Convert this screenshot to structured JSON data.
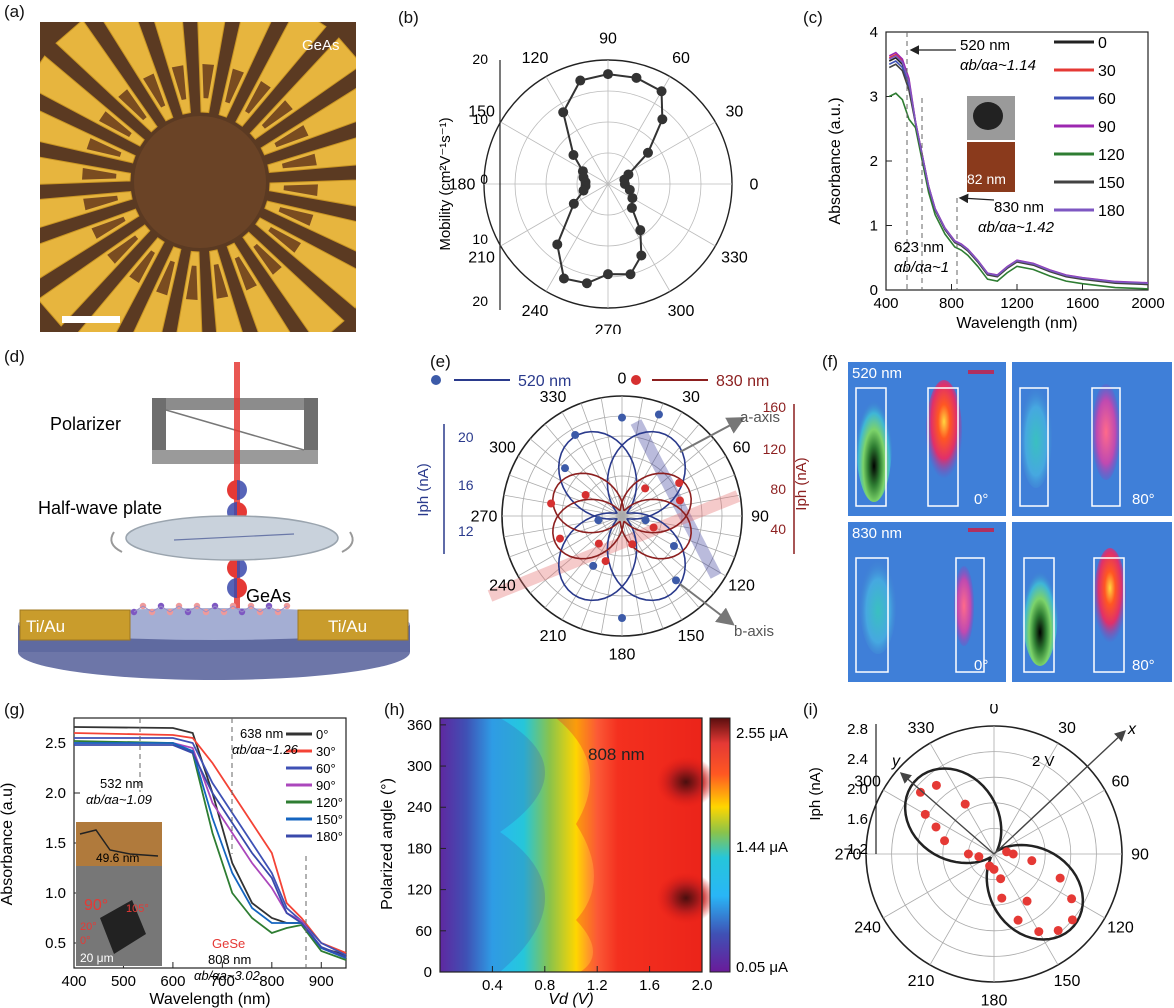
{
  "panel_labels": [
    "(a)",
    "(b)",
    "(c)",
    "(d)",
    "(e)",
    "(f)",
    "(g)",
    "(h)",
    "(i)"
  ],
  "a": {
    "material": "GeAs"
  },
  "b": {
    "ylabel": "Mobility (cm²V⁻¹s⁻¹)",
    "radial_ticks": [
      "0",
      "10",
      "20"
    ],
    "angle_labels": [
      "0",
      "30",
      "60",
      "90",
      "120",
      "150",
      "180",
      "210",
      "240",
      "270",
      "300",
      "330"
    ]
  },
  "c": {
    "xlabel": "Wavelength (nm)",
    "ylabel": "Absorbance (a.u.)",
    "xticks": [
      "400",
      "800",
      "1200",
      "1600",
      "2000"
    ],
    "yticks": [
      "0",
      "1",
      "2",
      "3",
      "4"
    ],
    "legend": [
      "0",
      "30",
      "60",
      "90",
      "120",
      "150",
      "180"
    ],
    "colors": [
      "#222222",
      "#e53935",
      "#3f51b5",
      "#9c27b0",
      "#2e7d32",
      "#424242",
      "#7e57c2"
    ],
    "ann1_wl": "520 nm",
    "ann1_ratio": "αb/αa~1.14",
    "ann2_wl": "623 nm",
    "ann2_ratio": "αb/αa~1",
    "ann3_wl": "830 nm",
    "ann3_ratio": "αb/αa~1.42",
    "inset_thickness": "82 nm"
  },
  "d": {
    "polarizer": "Polarizer",
    "halfwave": "Half-wave plate",
    "material": "GeAs",
    "electrode_left": "Ti/Au",
    "electrode_right": "Ti/Au"
  },
  "e": {
    "legend_blue": "520 nm",
    "legend_red": "830 nm",
    "left_axis_label": "Iph (nA)",
    "right_axis_label": "Iph (nA)",
    "left_ticks": [
      "12",
      "16",
      "20"
    ],
    "right_ticks": [
      "40",
      "80",
      "120",
      "160"
    ],
    "angle_labels": [
      "0",
      "30",
      "60",
      "90",
      "120",
      "150",
      "180",
      "210",
      "240",
      "270",
      "300",
      "330"
    ],
    "a_axis": "a-axis",
    "b_axis": "b-axis"
  },
  "f": {
    "top_label": "520 nm",
    "bottom_label": "830 nm",
    "angle_left": "0°",
    "angle_right": "80°"
  },
  "g": {
    "xlabel": "Wavelength (nm)",
    "ylabel": "Absorbance (a.u)",
    "xticks": [
      "400",
      "500",
      "600",
      "700",
      "800",
      "900"
    ],
    "yticks": [
      "0.5",
      "1.0",
      "1.5",
      "2.0",
      "2.5"
    ],
    "legend": [
      "0°",
      "30°",
      "60°",
      "90°",
      "120°",
      "150°",
      "180°"
    ],
    "colors": [
      "#333333",
      "#f44336",
      "#3f51b5",
      "#ab47bc",
      "#2e7d32",
      "#1565c0",
      "#3949ab"
    ],
    "ann1_wl": "532 nm",
    "ann1_ratio": "αb/αa~1.09",
    "ann2_wl": "638 nm",
    "ann2_ratio": "αb/αa~1.26",
    "ann3_wl": "808 nm",
    "ann3_ratio": "αb/αa~3.02",
    "material": "GeSe",
    "inset_thickness": "49.6 nm",
    "scale": "20 μm",
    "inset_angles": [
      "90°",
      "105°",
      "20°",
      "0°"
    ]
  },
  "h": {
    "xlabel": "Vd (V)",
    "ylabel": "Polarized angle (°)",
    "xticks": [
      "0.4",
      "0.8",
      "1.2",
      "1.6",
      "2.0"
    ],
    "yticks": [
      "0",
      "60",
      "120",
      "180",
      "240",
      "300",
      "360"
    ],
    "wavelength": "808 nm",
    "colorbar_ticks": [
      "2.55 μA",
      "1.44 μA",
      "0.05 μA"
    ]
  },
  "i": {
    "ylabel": "Iph (nA)",
    "radial_ticks": [
      "1.2",
      "1.6",
      "2.0",
      "2.4",
      "2.8"
    ],
    "angle_labels": [
      "0",
      "30",
      "60",
      "90",
      "120",
      "150",
      "180",
      "210",
      "240",
      "270",
      "300",
      "330"
    ],
    "bias": "2 V",
    "x_axis": "x",
    "y_axis": "y"
  }
}
